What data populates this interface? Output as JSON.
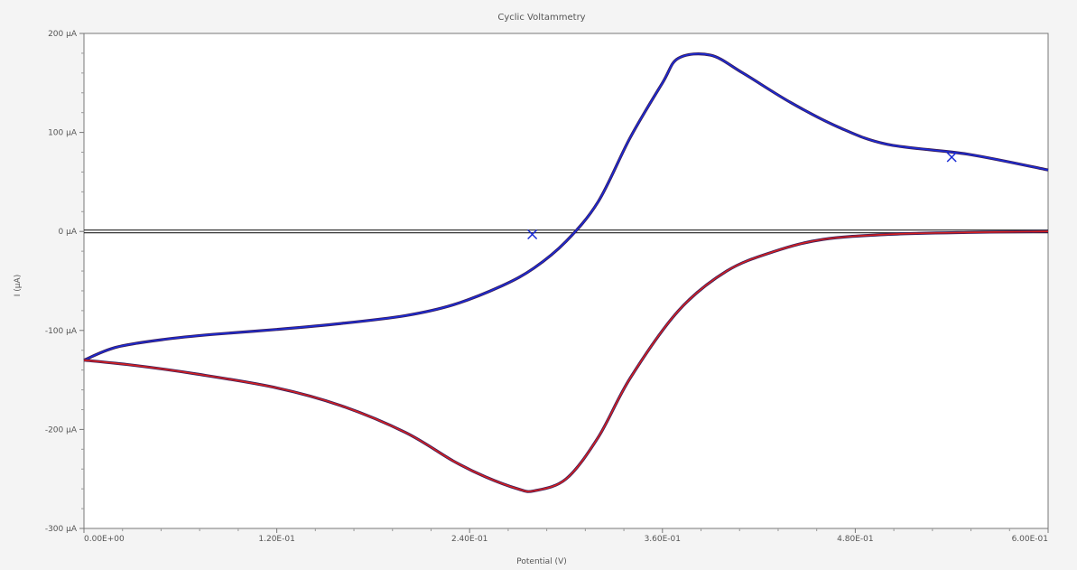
{
  "chart_data": {
    "type": "line",
    "title": "Cyclic Voltammetry",
    "xlabel": "Potential (V)",
    "ylabel": "I (µA)",
    "xlim": [
      0.0,
      0.6
    ],
    "ylim": [
      -300,
      200
    ],
    "x_ticks": [
      0.0,
      0.12,
      0.24,
      0.36,
      0.48,
      0.6
    ],
    "x_tick_labels": [
      "0.00E+00",
      "1.20E-01",
      "2.40E-01",
      "3.60E-01",
      "4.80E-01",
      "6.00E-01"
    ],
    "y_ticks": [
      200,
      100,
      0,
      -100,
      -200,
      -300
    ],
    "y_tick_labels": [
      "200 µA",
      "100 µA",
      "0 µA",
      "-100 µA",
      "-200 µA",
      "-300 µA"
    ],
    "zero_line": 0,
    "series": [
      {
        "color": "#1a2bd6",
        "x": [
          0.0,
          0.02,
          0.05,
          0.08,
          0.12,
          0.16,
          0.2,
          0.23,
          0.26,
          0.28,
          0.3,
          0.32,
          0.34,
          0.36,
          0.37,
          0.39,
          0.41,
          0.44,
          0.47,
          0.5,
          0.55,
          0.6
        ],
        "y": [
          -130,
          -117,
          -109,
          -104,
          -99,
          -93,
          -85,
          -74,
          -55,
          -37,
          -10,
          30,
          95,
          150,
          175,
          178,
          160,
          130,
          105,
          88,
          78,
          62
        ],
        "markers": [
          {
            "x": 0.279,
            "y": -3
          },
          {
            "x": 0.54,
            "y": 75
          }
        ]
      },
      {
        "color": "#d62020",
        "x": [
          0.0,
          0.03,
          0.07,
          0.12,
          0.16,
          0.2,
          0.23,
          0.25,
          0.27,
          0.28,
          0.3,
          0.32,
          0.34,
          0.37,
          0.4,
          0.43,
          0.46,
          0.5,
          0.55,
          0.6
        ],
        "y": [
          -130,
          -135,
          -144,
          -158,
          -176,
          -203,
          -232,
          -248,
          -260,
          -262,
          -250,
          -208,
          -148,
          -80,
          -40,
          -20,
          -8,
          -3,
          -1,
          0
        ]
      }
    ],
    "grid": false,
    "legend": "none"
  }
}
